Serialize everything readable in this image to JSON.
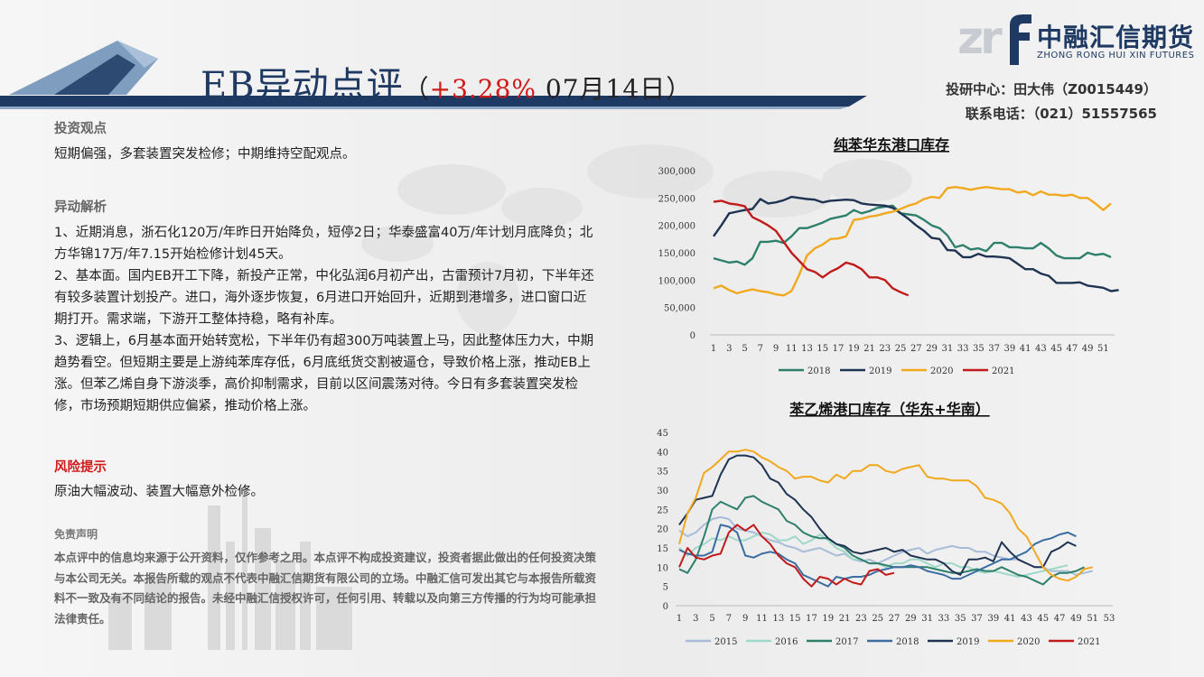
{
  "header": {
    "title_main": "EB异动点评",
    "title_open": "（",
    "title_pct": "+3.28%",
    "title_date": " 07月14日）",
    "logo_letters": "zr",
    "logo_cn": "中融汇信期货",
    "logo_en": "ZHONG RONG HUI XIN FUTURES",
    "contact_line1": "投研中心：田大伟（Z0015449）",
    "contact_line2": "联系电话：（021）51557565"
  },
  "colors": {
    "navy": "#1f3a62",
    "red": "#d11919",
    "accent": "#8faac6"
  },
  "sections": {
    "view_heading": "投资观点",
    "view_text": "短期偏强，多套装置突发检修；中期维持空配观点。",
    "analysis_heading": "异动解析",
    "analysis_p1": "1、近期消息，浙石化120万/年昨日开始降负，短停2日；华泰盛富40万/年计划月底降负；北方华锦17万/年7.15开始检修计划45天。",
    "analysis_p2": "2、基本面。国内EB开工下降，新投产正常，中化弘润6月初产出，古雷预计7月初，下半年还有较多装置计划投产。进口，海外逐步恢复，6月进口开始回升，近期到港增多，进口窗口近期打开。需求端，下游开工整体持稳，略有补库。",
    "analysis_p3": "3、逻辑上，6月基本面开始转宽松，下半年仍有超300万吨装置上马，因此整体压力大，中期趋势看空。但短期主要是上游纯苯库存低，6月底纸货交割被逼仓，导致价格上涨，推动EB上涨。但苯乙烯自身下游淡季，高价抑制需求，目前以区间震荡对待。今日有多套装置突发检修，市场预期短期供应偏紧，推动价格上涨。",
    "risk_heading": "风险提示",
    "risk_text": "原油大幅波动、装置大幅意外检修。",
    "disclaimer_heading": "免责声明",
    "disclaimer_text": "本点评中的信息均来源于公开资料，仅作参考之用。本点评不构成投资建议，投资者据此做出的任何投资决策与本公司无关。本报告所载的观点不代表中融汇信期货有限公司的立场。中融汇信可发出其它与本报告所载资料不一致及有不同结论的报告。未经中融汇信授权许可，任何引用、转载以及向第三方传播的行为均可能承担法律责任。"
  },
  "chart_data": [
    {
      "type": "line",
      "title": "纯苯华东港口库存",
      "x_ticks": [
        "1",
        "3",
        "5",
        "7",
        "9",
        "11",
        "13",
        "15",
        "17",
        "19",
        "21",
        "23",
        "25",
        "27",
        "29",
        "31",
        "33",
        "35",
        "37",
        "39",
        "41",
        "43",
        "45",
        "47",
        "49",
        "51"
      ],
      "ylim": [
        0,
        300000
      ],
      "y_ticks": [
        "0",
        "50,000",
        "100,000",
        "150,000",
        "200,000",
        "250,000",
        "300,000"
      ],
      "legend_position": "bottom",
      "series": [
        {
          "name": "2018",
          "color": "#2e7f6c",
          "values": [
            140000,
            136000,
            132000,
            134000,
            128000,
            140000,
            170000,
            170000,
            172000,
            168000,
            180000,
            195000,
            195000,
            200000,
            205000,
            212000,
            215000,
            218000,
            228000,
            222000,
            226000,
            232000,
            234000,
            236000,
            222000,
            220000,
            218000,
            210000,
            200000,
            195000,
            182000,
            160000,
            164000,
            156000,
            158000,
            153000,
            168000,
            168000,
            160000,
            160000,
            158000,
            158000,
            168000,
            158000,
            145000,
            140000,
            140000,
            140000,
            150000,
            146000,
            148000,
            142000
          ]
        },
        {
          "name": "2019",
          "color": "#1e3452",
          "values": [
            180000,
            200000,
            222000,
            225000,
            228000,
            230000,
            248000,
            240000,
            242000,
            246000,
            252000,
            250000,
            248000,
            247000,
            242000,
            245000,
            246000,
            247000,
            246000,
            240000,
            238000,
            237000,
            236000,
            232000,
            222000,
            212000,
            200000,
            190000,
            177000,
            175000,
            155000,
            154000,
            142000,
            142000,
            148000,
            143000,
            143000,
            142000,
            140000,
            130000,
            120000,
            120000,
            112000,
            108000,
            95000,
            95000,
            95000,
            96000,
            90000,
            88000,
            86000,
            80000,
            82000
          ]
        },
        {
          "name": "2020",
          "color": "#f2a81d",
          "values": [
            85000,
            90000,
            82000,
            76000,
            80000,
            83000,
            80000,
            78000,
            74000,
            72000,
            80000,
            110000,
            145000,
            158000,
            165000,
            175000,
            176000,
            180000,
            210000,
            212000,
            216000,
            218000,
            222000,
            225000,
            230000,
            236000,
            240000,
            248000,
            252000,
            250000,
            268000,
            270000,
            268000,
            265000,
            268000,
            270000,
            268000,
            266000,
            266000,
            260000,
            262000,
            255000,
            262000,
            256000,
            256000,
            254000,
            256000,
            250000,
            250000,
            240000,
            228000,
            240000
          ]
        },
        {
          "name": "2021",
          "color": "#c11a1a",
          "values": [
            243000,
            245000,
            240000,
            238000,
            235000,
            215000,
            208000,
            200000,
            190000,
            170000,
            150000,
            135000,
            120000,
            115000,
            105000,
            115000,
            122000,
            132000,
            128000,
            120000,
            105000,
            105000,
            100000,
            85000,
            78000,
            72000
          ]
        }
      ]
    },
    {
      "type": "line",
      "title": "苯乙烯港口库存（华东+华南）",
      "x_ticks": [
        "1",
        "3",
        "5",
        "7",
        "9",
        "11",
        "13",
        "15",
        "17",
        "19",
        "21",
        "23",
        "25",
        "27",
        "29",
        "31",
        "33",
        "35",
        "37",
        "39",
        "41",
        "43",
        "45",
        "47",
        "49",
        "51",
        "53"
      ],
      "ylim": [
        0,
        45
      ],
      "y_ticks": [
        "0",
        "5",
        "10",
        "15",
        "20",
        "25",
        "30",
        "35",
        "40",
        "45"
      ],
      "legend_position": "bottom",
      "series": [
        {
          "name": "2015",
          "color": "#a6bcd8",
          "values": [
            19.5,
            18.0,
            19.0,
            21.0,
            22.5,
            23.0,
            22.5,
            20.0,
            19.5,
            19.0,
            18.0,
            17.0,
            16.5,
            15.5,
            15.0,
            14.0,
            14.5,
            15.0,
            14.0,
            13.0,
            13.5,
            12.0,
            11.5,
            12.0,
            11.0,
            12.0,
            13.0,
            14.0,
            14.5,
            15.0,
            13.5,
            14.5,
            15.0,
            15.5,
            15.0,
            15.0,
            14.0,
            14.0,
            13.0,
            12.5,
            12.0,
            12.0,
            11.0,
            10.0,
            10.0,
            9.0,
            9.0,
            9.0,
            8.0,
            8.5,
            9.0
          ]
        },
        {
          "name": "2016",
          "color": "#9ed8c9",
          "values": [
            15.0,
            13.0,
            15.0,
            16.0,
            17.5,
            17.0,
            18.0,
            17.0,
            17.0,
            18.0,
            19.0,
            18.5,
            17.0,
            17.0,
            18.0,
            16.0,
            17.0,
            18.5,
            17.0,
            15.0,
            14.0,
            12.0,
            12.0,
            11.0,
            11.0,
            10.0,
            11.0,
            11.0,
            12.0,
            12.0,
            11.0,
            10.0,
            11.0,
            11.0,
            10.0,
            10.0,
            9.0,
            8.5,
            9.0,
            8.5,
            8.0,
            7.5,
            8.0,
            8.5,
            9.0,
            9.5,
            10.0,
            10.5
          ]
        },
        {
          "name": "2017",
          "color": "#2e7f6c",
          "values": [
            9.5,
            8.5,
            12.0,
            18.0,
            25.0,
            27.0,
            26.0,
            25.0,
            28.0,
            28.5,
            27.0,
            26.0,
            25.0,
            22.0,
            21.0,
            19.0,
            18.0,
            17.5,
            17.5,
            16.0,
            15.0,
            13.0,
            12.0,
            11.0,
            11.0,
            10.5,
            10.0,
            10.0,
            10.0,
            10.0,
            10.0,
            9.5,
            9.0,
            8.5,
            8.5,
            9.0,
            9.5,
            9.0,
            9.0,
            10.0,
            9.0,
            8.0,
            7.5,
            6.5,
            5.5,
            7.5,
            8.5,
            8.5,
            9.0,
            10.0
          ]
        },
        {
          "name": "2018",
          "color": "#3a6da2",
          "values": [
            14.5,
            13.5,
            13.0,
            13.0,
            14.0,
            21.0,
            20.5,
            19.0,
            13.0,
            12.5,
            13.5,
            14.0,
            13.5,
            12.0,
            11.0,
            8.0,
            7.0,
            6.0,
            5.0,
            7.5,
            7.0,
            7.5,
            7.5,
            8.0,
            9.0,
            9.5,
            10.0,
            10.0,
            10.5,
            10.0,
            9.0,
            8.5,
            8.0,
            7.0,
            7.0,
            8.0,
            9.0,
            10.0,
            11.0,
            12.0,
            12.0,
            13.0,
            14.0,
            16.0,
            17.0,
            17.5,
            18.5,
            19.0,
            18.0
          ]
        },
        {
          "name": "2019",
          "color": "#1e3452",
          "values": [
            21.0,
            24.0,
            27.5,
            28.0,
            28.5,
            34.0,
            38.0,
            39.0,
            39.0,
            38.5,
            36.5,
            33.0,
            32.0,
            29.0,
            27.5,
            25.0,
            23.0,
            20.0,
            17.5,
            16.0,
            15.5,
            14.0,
            13.5,
            14.0,
            14.5,
            15.0,
            14.0,
            14.5,
            13.0,
            12.5,
            12.0,
            12.0,
            11.0,
            9.0,
            8.0,
            12.0,
            12.0,
            12.5,
            11.5,
            16.5,
            14.0,
            12.0,
            11.0,
            10.0,
            10.0,
            14.0,
            15.0,
            16.5,
            15.5
          ]
        },
        {
          "name": "2020",
          "color": "#f2a81d",
          "values": [
            16.0,
            24.0,
            28.0,
            34.5,
            36.0,
            38.0,
            40.0,
            40.0,
            40.5,
            40.0,
            38.5,
            37.5,
            36.0,
            35.0,
            33.0,
            33.5,
            33.5,
            32.5,
            32.0,
            34.0,
            33.0,
            35.0,
            35.0,
            36.5,
            36.5,
            35.0,
            34.5,
            35.5,
            36.0,
            36.5,
            33.5,
            33.0,
            33.0,
            32.5,
            32.5,
            32.5,
            31.0,
            28.0,
            27.5,
            26.5,
            24.0,
            20.0,
            18.0,
            14.0,
            10.0,
            8.0,
            7.0,
            6.5,
            7.5,
            9.5,
            10.0
          ]
        },
        {
          "name": "2021",
          "color": "#c11a1a",
          "values": [
            10.0,
            15.0,
            12.5,
            12.0,
            13.0,
            13.5,
            19.0,
            21.0,
            19.5,
            21.0,
            18.0,
            16.0,
            13.0,
            11.0,
            10.0,
            7.0,
            5.0,
            7.5,
            7.0,
            5.5,
            7.0,
            6.0,
            5.5,
            9.0,
            9.5,
            8.0,
            8.5
          ]
        }
      ]
    }
  ]
}
